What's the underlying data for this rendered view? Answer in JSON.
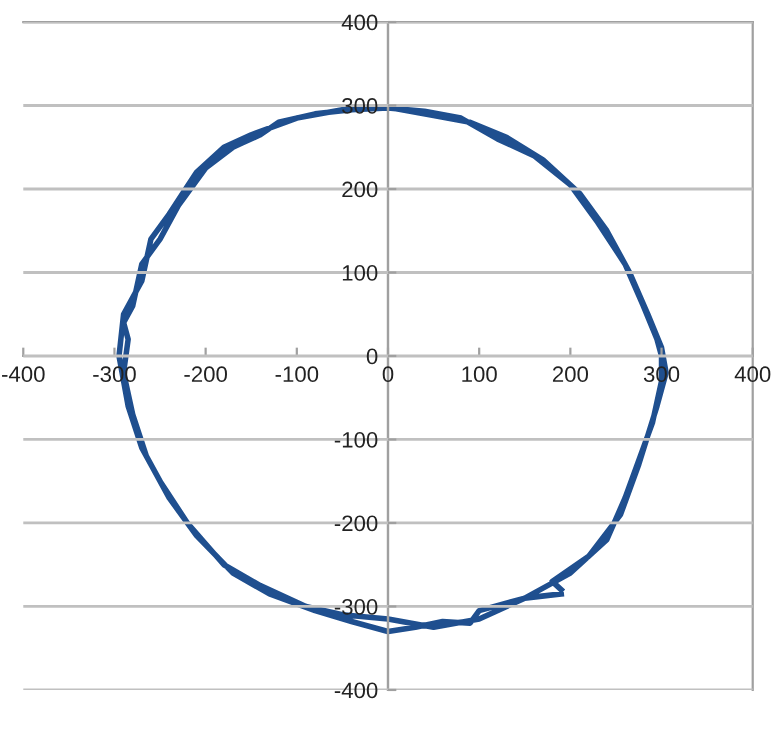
{
  "chart_data": {
    "type": "line",
    "color": "#1f4f8f",
    "grid": "y",
    "legend": false,
    "marker": "none",
    "line_style": "solid",
    "x": [
      190,
      150,
      100,
      90,
      60,
      30,
      0,
      -40,
      -80,
      -130,
      -170,
      -210,
      -240,
      -265,
      -280,
      -290,
      -285,
      -290,
      -280,
      -270,
      -250,
      -230,
      -200,
      -170,
      -160,
      -140,
      -120,
      -80,
      -40,
      0,
      40,
      80,
      120,
      160,
      200,
      230,
      260,
      280,
      295,
      300,
      300,
      290,
      280,
      260,
      240,
      200,
      150,
      100,
      50,
      0,
      -50,
      -90,
      -140,
      -180,
      -220,
      -250,
      -270,
      -285,
      -295,
      -290,
      -270,
      -260,
      -240,
      -210,
      -180,
      -150,
      -100,
      -50,
      0,
      50,
      90,
      130,
      170,
      210,
      240,
      265,
      285,
      300,
      305,
      295,
      275,
      255,
      220,
      180,
      190
    ],
    "values": [
      -285,
      -290,
      -305,
      -320,
      -318,
      -325,
      -330,
      -318,
      -305,
      -285,
      -260,
      -215,
      -170,
      -120,
      -70,
      -20,
      20,
      40,
      60,
      110,
      140,
      180,
      225,
      250,
      255,
      265,
      280,
      290,
      295,
      297,
      293,
      285,
      260,
      240,
      205,
      160,
      110,
      60,
      20,
      0,
      -30,
      -80,
      -110,
      -170,
      -220,
      -260,
      -290,
      -315,
      -325,
      -315,
      -310,
      -300,
      -275,
      -250,
      -200,
      -150,
      -110,
      -60,
      0,
      50,
      90,
      140,
      170,
      220,
      250,
      265,
      285,
      295,
      298,
      288,
      280,
      262,
      235,
      195,
      150,
      100,
      50,
      10,
      -20,
      -60,
      -130,
      -190,
      -240,
      -270,
      -280
    ],
    "xlim": [
      -400,
      400
    ],
    "ylim": [
      -400,
      400
    ],
    "xticks": [
      -400,
      -300,
      -200,
      -100,
      0,
      100,
      200,
      300,
      400
    ],
    "yticks": [
      -400,
      -300,
      -200,
      -100,
      0,
      100,
      200,
      300,
      400
    ]
  }
}
